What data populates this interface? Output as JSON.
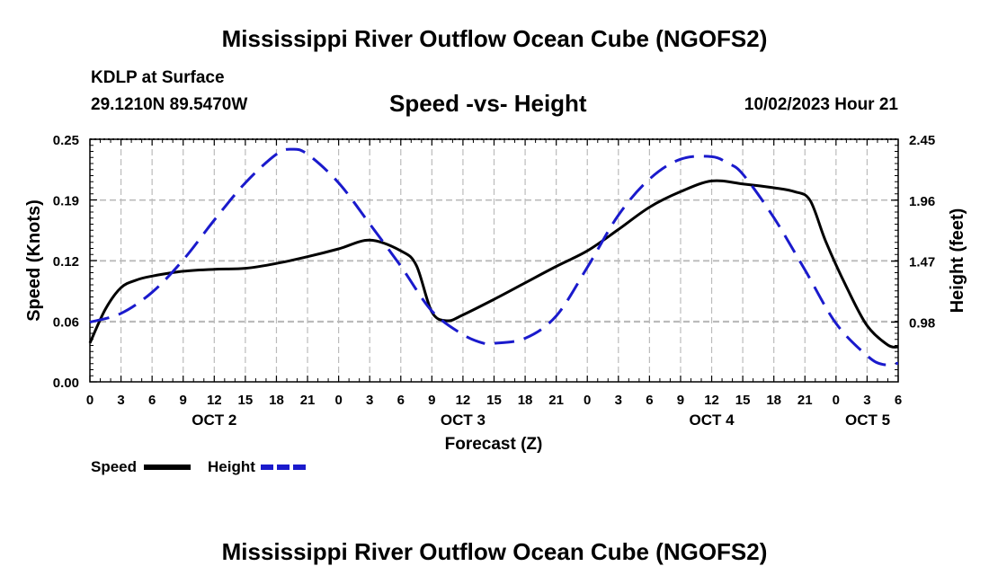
{
  "page": {
    "title": "Mississippi River Outflow Ocean Cube (NGOFS2)",
    "station": "KDLP at Surface",
    "coords": "29.1210N  89.5470W",
    "subtitle": "Speed -vs- Height",
    "datetime": "10/02/2023 Hour 21",
    "footer_title": "Mississippi River Outflow Ocean Cube (NGOFS2)"
  },
  "colors": {
    "speed": "#000000",
    "height": "#1a1acc",
    "grid": "#bbbbbb"
  },
  "chart_data": {
    "type": "line",
    "title": "Speed -vs- Height",
    "xlabel": "Forecast (Z)",
    "ylabel": "Speed (Knots)",
    "y2label": "Height (feet)",
    "xlim": [
      0,
      78
    ],
    "ylim": [
      0,
      0.25
    ],
    "y2lim": [
      0.5,
      2.45
    ],
    "y_ticks": [
      "0.00",
      "0.06",
      "0.12",
      "0.19",
      "0.25"
    ],
    "y_tick_values": [
      0,
      0.0625,
      0.125,
      0.1875,
      0.25
    ],
    "y2_ticks": [
      "0.98",
      "1.47",
      "1.96",
      "2.45"
    ],
    "y2_tick_values": [
      0.98,
      1.47,
      1.96,
      2.45
    ],
    "x_tick_labels": [
      "0",
      "3",
      "6",
      "9",
      "12",
      "15",
      "18",
      "21",
      "0",
      "3",
      "6",
      "9",
      "12",
      "15",
      "18",
      "21",
      "0",
      "3",
      "6",
      "9",
      "12",
      "15",
      "18",
      "21",
      "0",
      "3",
      "6"
    ],
    "date_labels": [
      {
        "label": "OCT 2",
        "hour": 12
      },
      {
        "label": "OCT 3",
        "hour": 36
      },
      {
        "label": "OCT 4",
        "hour": 60
      },
      {
        "label": "OCT 5",
        "hour": 78
      }
    ],
    "legend": [
      {
        "name": "Speed",
        "style": "solid"
      },
      {
        "name": "Height",
        "style": "dashed"
      }
    ],
    "series": [
      {
        "name": "Speed",
        "axis": "left",
        "x": [
          0,
          1.5,
          3,
          4.5,
          6,
          9,
          12,
          15,
          18,
          21,
          24,
          27,
          30,
          31.5,
          33,
          34.5,
          36,
          39,
          42,
          45,
          48,
          51,
          54,
          57,
          60,
          63,
          66,
          68,
          69.5,
          71,
          73,
          75,
          77,
          78
        ],
        "y": [
          0.04,
          0.075,
          0.097,
          0.105,
          0.109,
          0.114,
          0.116,
          0.117,
          0.122,
          0.129,
          0.137,
          0.146,
          0.135,
          0.12,
          0.072,
          0.063,
          0.069,
          0.085,
          0.102,
          0.119,
          0.135,
          0.157,
          0.18,
          0.196,
          0.207,
          0.204,
          0.2,
          0.196,
          0.187,
          0.145,
          0.098,
          0.058,
          0.038,
          0.036
        ]
      },
      {
        "name": "Height",
        "axis": "right",
        "x": [
          0,
          3,
          6,
          9,
          12,
          15,
          18,
          19.5,
          21,
          24,
          27,
          30,
          33,
          36,
          38,
          39,
          42,
          45,
          48,
          51,
          54,
          57,
          60,
          61.5,
          63,
          66,
          69,
          72,
          75,
          76.5,
          78
        ],
        "y": [
          0.98,
          1.05,
          1.22,
          1.48,
          1.8,
          2.1,
          2.33,
          2.37,
          2.33,
          2.1,
          1.77,
          1.43,
          1.07,
          0.88,
          0.81,
          0.81,
          0.85,
          1.03,
          1.42,
          1.84,
          2.13,
          2.29,
          2.31,
          2.26,
          2.17,
          1.82,
          1.4,
          0.97,
          0.71,
          0.64,
          0.65
        ]
      }
    ]
  }
}
